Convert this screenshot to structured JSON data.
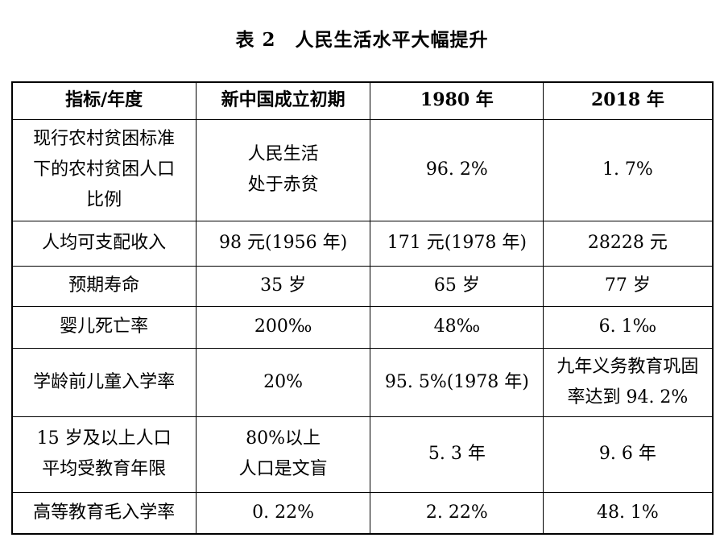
{
  "page": {
    "title": "表 2　人民生活水平大幅提升"
  },
  "colors": {
    "text": "#000000",
    "border": "#000000",
    "background": "#ffffff"
  },
  "table": {
    "headers": [
      "指标/年度",
      "新中国成立初期",
      "1980 年",
      "2018 年"
    ],
    "rows": [
      {
        "cells": [
          "现行农村贫困标准\n下的农村贫困人口\n比例",
          "人民生活\n处于赤贫",
          "96. 2%",
          "1. 7%"
        ]
      },
      {
        "cells": [
          "人均可支配收入",
          "98 元(1956 年)",
          "171 元(1978 年)",
          "28228 元"
        ]
      },
      {
        "cells": [
          "预期寿命",
          "35 岁",
          "65 岁",
          "77 岁"
        ]
      },
      {
        "cells": [
          "婴儿死亡率",
          "200‰",
          "48‰",
          "6. 1‰"
        ]
      },
      {
        "cells": [
          "学龄前儿童入学率",
          "20%",
          "95. 5%(1978 年)",
          "九年义务教育巩固\n率达到 94. 2%"
        ]
      },
      {
        "cells": [
          "15 岁及以上人口\n平均受教育年限",
          "80%以上\n人口是文盲",
          "5. 3 年",
          "9. 6 年"
        ]
      },
      {
        "cells": [
          "高等教育毛入学率",
          "0. 22%",
          "2. 22%",
          "48. 1%"
        ]
      }
    ]
  }
}
